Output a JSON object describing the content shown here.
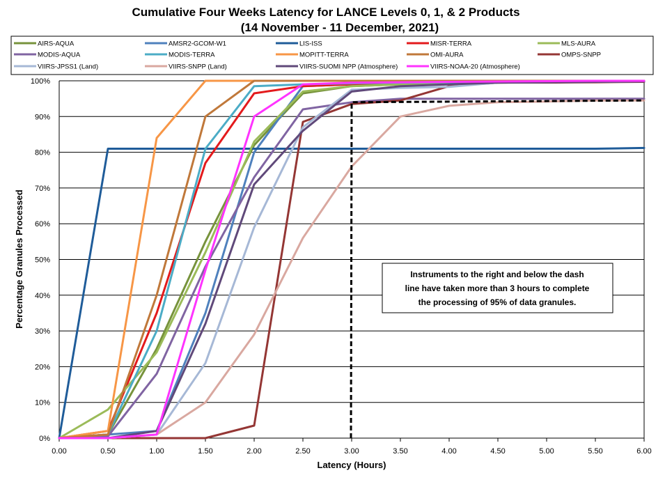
{
  "chart_data": {
    "type": "line",
    "title": "Cumulative Four Weeks Latency  for LANCE Levels 0, 1, & 2 Products",
    "subtitle": "(14  November  -  11  December,  2021)",
    "xlabel": "Latency (Hours)",
    "ylabel": "Percentage Granules Processed",
    "xlim": [
      0,
      6
    ],
    "ylim": [
      0,
      100
    ],
    "x_ticks": [
      "0.00",
      "0.50",
      "1.00",
      "1.50",
      "2.00",
      "2.50",
      "3.00",
      "3.50",
      "4.00",
      "4.50",
      "5.00",
      "5.50",
      "6.00"
    ],
    "y_ticks": [
      "0%",
      "10%",
      "20%",
      "30%",
      "40%",
      "50%",
      "60%",
      "70%",
      "80%",
      "90%",
      "100%"
    ],
    "grid": "horizontal",
    "legend_position": "top",
    "x": [
      0,
      0.5,
      1,
      1.5,
      2,
      2.5,
      3,
      3.5,
      4,
      4.5,
      5,
      5.5,
      6
    ],
    "series": [
      {
        "name": "AIRS-AQUA",
        "color": "#77933c",
        "values": [
          0,
          1,
          25,
          55,
          82,
          96.5,
          98.5,
          99,
          99.3,
          99.5,
          99.6,
          99.7,
          99.8
        ]
      },
      {
        "name": "AMSR2-GCOM-W1",
        "color": "#4f81bd",
        "values": [
          0,
          1,
          2,
          35,
          80,
          98.5,
          99,
          99.3,
          99.5,
          99.6,
          99.7,
          99.8,
          99.9
        ]
      },
      {
        "name": "LIS-ISS",
        "color": "#1f5c99",
        "values": [
          0,
          81,
          81,
          81,
          81,
          81,
          81,
          81,
          81,
          81,
          81,
          81,
          81.2
        ]
      },
      {
        "name": "MISR-TERRA",
        "color": "#e31a1c",
        "values": [
          0,
          2,
          35,
          77,
          96.5,
          98.5,
          99,
          99.3,
          99.5,
          99.6,
          99.7,
          99.8,
          99.9
        ]
      },
      {
        "name": "MLS-AURA",
        "color": "#9bbb59",
        "values": [
          0,
          8,
          24,
          52,
          83,
          97,
          98.5,
          99,
          99.3,
          99.5,
          99.6,
          99.7,
          99.8
        ]
      },
      {
        "name": "MODIS-AQUA",
        "color": "#8064a2",
        "values": [
          0,
          0.5,
          18,
          48,
          73,
          92,
          94,
          95,
          95,
          95,
          95,
          95,
          95
        ]
      },
      {
        "name": "MODIS-TERRA",
        "color": "#4bacc6",
        "values": [
          0,
          1,
          30,
          81,
          98.5,
          99,
          99.3,
          99.5,
          99.6,
          99.7,
          99.8,
          99.9,
          100
        ]
      },
      {
        "name": "MOPITT-TERRA",
        "color": "#f79646",
        "values": [
          0,
          2,
          84,
          100,
          100,
          100,
          100,
          100,
          100,
          100,
          100,
          100,
          100
        ]
      },
      {
        "name": "OMI-AURA",
        "color": "#c0783a",
        "values": [
          0,
          1,
          40,
          90,
          100,
          100,
          100,
          100,
          100,
          100,
          100,
          100,
          100
        ]
      },
      {
        "name": "OMPS-SNPP",
        "color": "#943634",
        "values": [
          0,
          0,
          0,
          0,
          3.5,
          88.5,
          93.5,
          94.5,
          98.5,
          99.5,
          99.5,
          99.6,
          99.7
        ]
      },
      {
        "name": "VIIRS-JPSS1 (Land)",
        "color": "#a6b8d6",
        "values": [
          0,
          0,
          1,
          21,
          59,
          87,
          97.5,
          98,
          98.3,
          99.5,
          99.6,
          99.7,
          99.8
        ]
      },
      {
        "name": "VIIRS-SNPP (Land)",
        "color": "#d9a8a0",
        "values": [
          0,
          0,
          1,
          10,
          29,
          56,
          76,
          90,
          93,
          94,
          94.2,
          94.5,
          94.5
        ]
      },
      {
        "name": "VIIRS-SUOMI NPP (Atmosphere)",
        "color": "#60497a",
        "values": [
          0,
          0,
          2,
          32,
          71,
          86,
          97,
          98.5,
          99,
          99.5,
          99.6,
          99.7,
          99.8
        ]
      },
      {
        "name": "VIIRS-NOAA-20 (Atmosphere)",
        "color": "#ff33ff",
        "values": [
          0,
          0,
          1,
          47,
          90,
          99,
          99.5,
          99.6,
          99.7,
          99.8,
          99.9,
          100,
          100
        ]
      }
    ],
    "threshold_line": {
      "x": 3.0,
      "y": 94,
      "y_end": 94.5,
      "style": "dashed",
      "color": "#000000"
    },
    "annotation": [
      "Instruments to the right and below the dash",
      "line have taken more than 3 hours to complete",
      "the processing of 95% of data granules."
    ]
  }
}
